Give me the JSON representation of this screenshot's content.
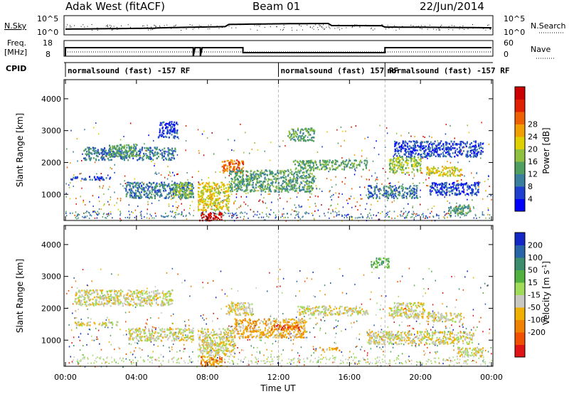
{
  "header": {
    "station": "Adak West (fitACF)",
    "beam": "Beam 01",
    "date": "22/Jun/2014"
  },
  "noise_panel": {
    "left_label": "N.Sky",
    "left_ticks": [
      "10^5",
      "10^0"
    ],
    "right_label": "N.Search",
    "right_ticks": [
      "10^5",
      "10^0"
    ]
  },
  "freq_panel": {
    "left_label_line1": "Freq.",
    "left_label_line2": "[MHz]",
    "left_ticks": [
      "18",
      "8"
    ],
    "right_label": "Nave",
    "right_ticks": [
      "60",
      "0"
    ]
  },
  "cpid": {
    "label": "CPID",
    "segments": [
      {
        "start_hour": 0,
        "text": "normalsound (fast) -157 RF"
      },
      {
        "start_hour": 12,
        "text": "normalsound (fast) 157 RF"
      },
      {
        "start_hour": 18,
        "text": "normalsound (fast) -157 RF"
      }
    ]
  },
  "chart_data": [
    {
      "type": "heatmap",
      "name": "power",
      "ylabel": "Slant Range [km]",
      "yticks": [
        1000,
        2000,
        3000,
        4000
      ],
      "ylim": [
        180,
        4600
      ],
      "x_hours": [
        0,
        24
      ],
      "colorbar": {
        "label": "Power [dB]",
        "ticks": [
          "4",
          "8",
          "12",
          "16",
          "20",
          "24",
          "28"
        ],
        "colors": [
          "#0000ff",
          "#1f3fd0",
          "#3a7f9e",
          "#4fa060",
          "#8fc040",
          "#e0d000",
          "#f0a000",
          "#ef6000",
          "#e02000",
          "#cc0000"
        ]
      },
      "regions": [
        {
          "t0": 0.2,
          "t1": 2.5,
          "r0": 1480,
          "r1": 1580,
          "level": 1
        },
        {
          "t0": 1.0,
          "t1": 6.2,
          "r0": 2100,
          "r1": 2500,
          "level": 2
        },
        {
          "t0": 2.4,
          "t1": 4.0,
          "r0": 2200,
          "r1": 2600,
          "level": 3
        },
        {
          "t0": 5.2,
          "t1": 6.3,
          "r0": 2800,
          "r1": 3300,
          "level": 1
        },
        {
          "t0": 3.3,
          "t1": 7.2,
          "r0": 900,
          "r1": 1400,
          "level": 2
        },
        {
          "t0": 6.0,
          "t1": 7.1,
          "r0": 900,
          "r1": 1400,
          "level": 4
        },
        {
          "t0": 7.4,
          "t1": 9.2,
          "r0": 500,
          "r1": 1400,
          "level": 5
        },
        {
          "t0": 7.5,
          "t1": 8.8,
          "r0": 200,
          "r1": 450,
          "level": 9
        },
        {
          "t0": 8.8,
          "t1": 10.0,
          "r0": 1700,
          "r1": 2100,
          "level": 7
        },
        {
          "t0": 9.2,
          "t1": 14.0,
          "r0": 1100,
          "r1": 1800,
          "level": 3
        },
        {
          "t0": 12.8,
          "t1": 17.0,
          "r0": 1800,
          "r1": 2100,
          "level": 3
        },
        {
          "t0": 12.5,
          "t1": 14.0,
          "r0": 2700,
          "r1": 3100,
          "level": 3
        },
        {
          "t0": 17.0,
          "t1": 19.8,
          "r0": 900,
          "r1": 1300,
          "level": 2
        },
        {
          "t0": 18.2,
          "t1": 20.0,
          "r0": 1700,
          "r1": 2200,
          "level": 4
        },
        {
          "t0": 20.3,
          "t1": 22.3,
          "r0": 1600,
          "r1": 1900,
          "level": 5
        },
        {
          "t0": 18.5,
          "t1": 23.5,
          "r0": 2200,
          "r1": 2700,
          "level": 1
        },
        {
          "t0": 20.5,
          "t1": 23.3,
          "r0": 1000,
          "r1": 1400,
          "level": 1
        },
        {
          "t0": 21.5,
          "t1": 22.8,
          "r0": 400,
          "r1": 700,
          "level": 3
        }
      ]
    },
    {
      "type": "heatmap",
      "name": "velocity",
      "ylabel": "Slant Range [km]",
      "yticks": [
        1000,
        2000,
        3000,
        4000
      ],
      "ylim": [
        180,
        4600
      ],
      "x_hours": [
        0,
        24
      ],
      "xticks": [
        "00:00",
        "04:00",
        "08:00",
        "12:00",
        "16:00",
        "20:00",
        "00:00"
      ],
      "xlabel": "Time UT",
      "colorbar": {
        "label": "Velocity [m s^-1]",
        "ticks": [
          "200",
          "100",
          "50",
          "15",
          "-15",
          "-50",
          "-100",
          "-200"
        ],
        "colors": [
          "#1428c8",
          "#2864a8",
          "#3c8c6e",
          "#50b040",
          "#a0dc5a",
          "#c8c8c0",
          "#f0b000",
          "#f08200",
          "#f05000",
          "#e01414"
        ]
      },
      "regions": [
        {
          "t0": 0.5,
          "t1": 6.0,
          "r0": 2100,
          "r1": 2600,
          "level": 5
        },
        {
          "t0": 0.5,
          "t1": 3.0,
          "r0": 1480,
          "r1": 1600,
          "level": 5
        },
        {
          "t0": 3.5,
          "t1": 7.2,
          "r0": 1000,
          "r1": 1400,
          "level": 5
        },
        {
          "t0": 7.2,
          "t1": 9.5,
          "r0": 500,
          "r1": 1400,
          "level": 5
        },
        {
          "t0": 7.6,
          "t1": 8.8,
          "r0": 200,
          "r1": 500,
          "level": 7
        },
        {
          "t0": 9.0,
          "t1": 10.5,
          "r0": 1800,
          "r1": 2200,
          "level": 5
        },
        {
          "t0": 9.5,
          "t1": 13.5,
          "r0": 1100,
          "r1": 1700,
          "level": 6
        },
        {
          "t0": 11.5,
          "t1": 13.2,
          "r0": 1350,
          "r1": 1500,
          "level": 8
        },
        {
          "t0": 13.0,
          "t1": 17.0,
          "r0": 1800,
          "r1": 2100,
          "level": 5
        },
        {
          "t0": 14.0,
          "t1": 15.5,
          "r0": 700,
          "r1": 800,
          "level": 6
        },
        {
          "t0": 17.2,
          "t1": 18.2,
          "r0": 3300,
          "r1": 3600,
          "level": 3
        },
        {
          "t0": 18.2,
          "t1": 20.2,
          "r0": 1700,
          "r1": 2200,
          "level": 5
        },
        {
          "t0": 20.3,
          "t1": 22.3,
          "r0": 1600,
          "r1": 1900,
          "level": 5
        },
        {
          "t0": 17.0,
          "t1": 23.0,
          "r0": 900,
          "r1": 1300,
          "level": 5
        },
        {
          "t0": 22.0,
          "t1": 23.5,
          "r0": 500,
          "r1": 800,
          "level": 5
        }
      ]
    }
  ]
}
